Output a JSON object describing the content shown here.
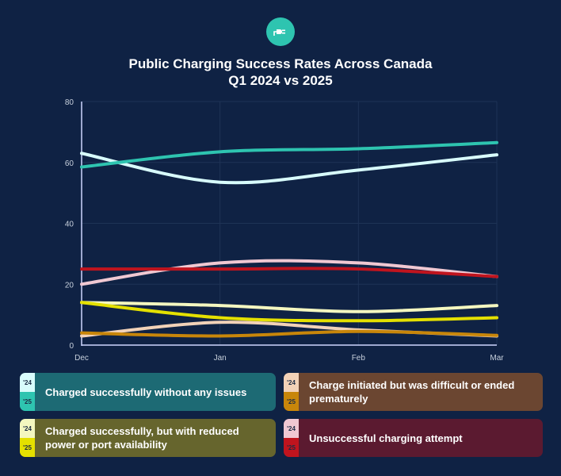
{
  "header": {
    "title_line1": "Public Charging Success Rates Across Canada",
    "title_line2": "Q1 2024 vs 2025",
    "logo_icon": "ev-plug-icon"
  },
  "chart_data": {
    "type": "line",
    "title": "Public Charging Success Rates Across Canada Q1 2024 vs 2025",
    "x": [
      "Dec",
      "Jan",
      "Feb",
      "Mar"
    ],
    "ylim": [
      0,
      80
    ],
    "yticks": [
      "0",
      "20",
      "40",
      "60",
      "80"
    ],
    "series": [
      {
        "name": "Charged successfully without any issues '24",
        "values": [
          63,
          53.5,
          57.5,
          62.5
        ],
        "color": "#d8fcfc"
      },
      {
        "name": "Charged successfully without any issues '25",
        "values": [
          58.5,
          63.5,
          64.5,
          66.5
        ],
        "color": "#2ec4b0"
      },
      {
        "name": "Charge initiated but was difficult or ended prematurely '24",
        "values": [
          3,
          7.5,
          5,
          3
        ],
        "color": "#f2d2b8"
      },
      {
        "name": "Charge initiated but was difficult or ended prematurely '25",
        "values": [
          4,
          3,
          4.5,
          3.2
        ],
        "color": "#c8860a"
      },
      {
        "name": "Charged successfully, but with reduced power or port availability '24",
        "values": [
          14,
          13,
          11,
          13
        ],
        "color": "#f4f7c0"
      },
      {
        "name": "Charged successfully, but with reduced power or port availability '25",
        "values": [
          14,
          9,
          8,
          9
        ],
        "color": "#e4e000"
      },
      {
        "name": "Unsuccessful charging attempt '24",
        "values": [
          20,
          27,
          27,
          22.5
        ],
        "color": "#f0c8d2"
      },
      {
        "name": "Unsuccessful charging attempt '25",
        "values": [
          25,
          25,
          25,
          22.5
        ],
        "color": "#c0141e"
      }
    ]
  },
  "legend": {
    "year_a": "'24",
    "year_b": "'25",
    "items": [
      {
        "label": "Charged successfully without any issues",
        "bg": "#1d6a74",
        "color_a": "#d8fcfc",
        "color_b": "#2ec4b0"
      },
      {
        "label": "Charge initiated but was difficult or ended prematurely",
        "bg": "#6b4631",
        "color_a": "#f2d2b8",
        "color_b": "#c8860a"
      },
      {
        "label": "Charged successfully, but with reduced power or port availability",
        "bg": "#66652d",
        "color_a": "#f4f7c0",
        "color_b": "#e4e000"
      },
      {
        "label": "Unsuccessful charging attempt",
        "bg": "#5b1a30",
        "color_a": "#f0c8d2",
        "color_b": "#c0141e"
      }
    ]
  }
}
